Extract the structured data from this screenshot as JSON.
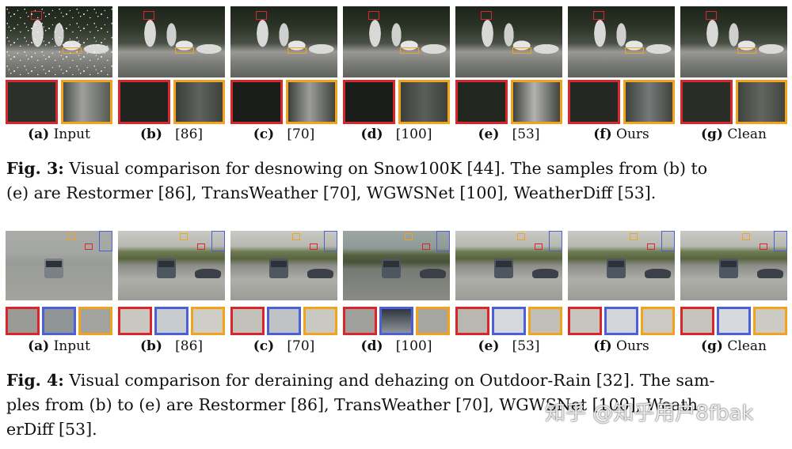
{
  "fig3": {
    "subcaptions": [
      {
        "letter": "(a)",
        "text": "Input"
      },
      {
        "letter": "(b)",
        "text": "[86]"
      },
      {
        "letter": "(c)",
        "text": "[70]"
      },
      {
        "letter": "(d)",
        "text": "[100]"
      },
      {
        "letter": "(e)",
        "text": "[53]"
      },
      {
        "letter": "(f)",
        "text": "Ours"
      },
      {
        "letter": "(g)",
        "text": "Clean"
      }
    ],
    "label": "Fig. 3:",
    "caption_line1": "Visual comparison for desnowing on Snow100K [44]. The samples from (b) to",
    "caption_line2": "(e) are Restormer [86], TransWeather [70], WGWSNet [100], WeatherDiff [53]."
  },
  "fig4": {
    "subcaptions": [
      {
        "letter": "(a)",
        "text": "Input"
      },
      {
        "letter": "(b)",
        "text": "[86]"
      },
      {
        "letter": "(c)",
        "text": "[70]"
      },
      {
        "letter": "(d)",
        "text": "[100]"
      },
      {
        "letter": "(e)",
        "text": "[53]"
      },
      {
        "letter": "(f)",
        "text": "Ours"
      },
      {
        "letter": "(g)",
        "text": "Clean"
      }
    ],
    "label": "Fig. 4:",
    "caption_line1": "Visual comparison for deraining and dehazing on Outdoor-Rain [32]. The sam-",
    "caption_line2": "ples from (b) to (e) are Restormer [86], TransWeather [70], WGWSNet [100], Weath-",
    "caption_line3": "erDiff [53]."
  },
  "colors": {
    "red_box": "#d8262a",
    "orange_box": "#f2a21b",
    "blue_box": "#4d5fd4"
  },
  "watermark": "知乎 @知乎用户8fbak"
}
